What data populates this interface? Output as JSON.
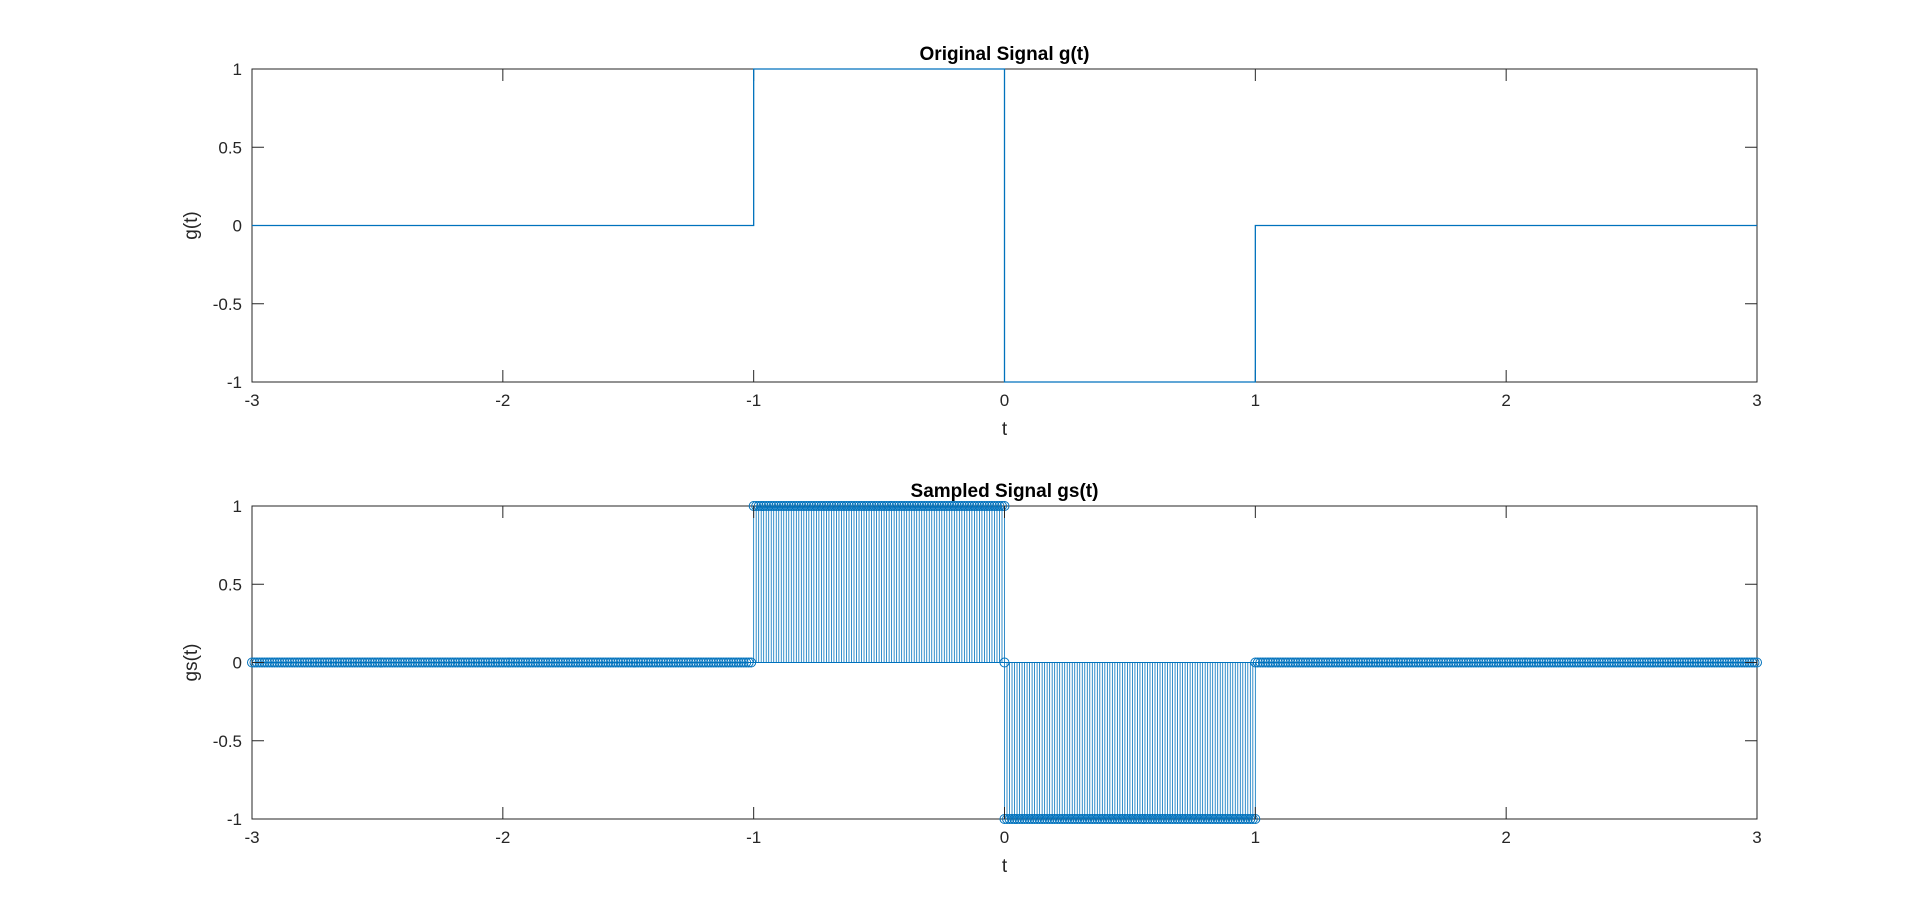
{
  "figure": {
    "background": "#ffffff",
    "line_color": "#0072BD",
    "axis_color": "#262626"
  },
  "chart_data": [
    {
      "type": "line",
      "title": "Original Signal g(t)",
      "xlabel": "t",
      "ylabel": "g(t)",
      "xlim": [
        -3,
        3
      ],
      "ylim": [
        -1,
        1
      ],
      "xticks": [
        "-3",
        "-2",
        "-1",
        "0",
        "1",
        "2",
        "3"
      ],
      "yticks": [
        "-1",
        "-0.5",
        "0",
        "0.5",
        "1"
      ],
      "grid": false,
      "series": [
        {
          "x": [
            -3,
            -1,
            -1,
            0,
            0,
            1,
            1,
            3
          ],
          "y": [
            0,
            0,
            1,
            1,
            -1,
            -1,
            0,
            0
          ],
          "color": "#0072BD"
        }
      ]
    },
    {
      "type": "stem",
      "title": "Sampled Signal gs(t)",
      "xlabel": "t",
      "ylabel": "gs(t)",
      "xlim": [
        -3,
        3
      ],
      "ylim": [
        -1,
        1
      ],
      "xticks": [
        "-3",
        "-2",
        "-1",
        "0",
        "1",
        "2",
        "3"
      ],
      "yticks": [
        "-1",
        "-0.5",
        "0",
        "0.5",
        "1"
      ],
      "grid": false,
      "sampling_interval": 0.01,
      "series": [
        {
          "marker": "circle",
          "color": "#0072BD",
          "segments": [
            {
              "x_start": -3,
              "x_end": -1,
              "y": 0
            },
            {
              "x_start": -1,
              "x_end": 0,
              "y": 1
            },
            {
              "x_start": 0,
              "x_end": 0,
              "y": 0
            },
            {
              "x_start": 0,
              "x_end": 1,
              "y": -1
            },
            {
              "x_start": 1,
              "x_end": 3,
              "y": 0
            }
          ]
        }
      ]
    }
  ]
}
